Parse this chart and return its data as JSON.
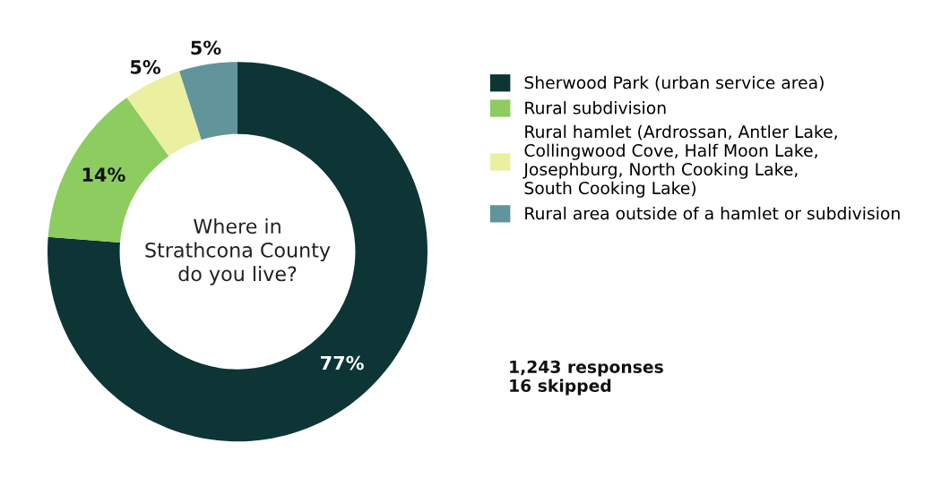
{
  "chart_data": {
    "type": "donut",
    "title": "Where in\nStrathcona County\ndo you live?",
    "categories": [
      "Sherwood Park (urban service area)",
      "Rural subdivision",
      "Rural hamlet (Ardrossan, Antler Lake,\nCollingwood Cove, Half Moon Lake,\nJosephburg, North Cooking Lake,\nSouth Cooking Lake)",
      "Rural area outside of a hamlet or subdivision"
    ],
    "values": [
      77,
      14,
      5,
      5
    ],
    "colors": [
      "#0d3536",
      "#8dcc5f",
      "#eaf0a0",
      "#62949c"
    ],
    "value_labels": [
      "77%",
      "14%",
      "5%",
      "5%"
    ],
    "legend": "right",
    "annotations": [
      "1,243 responses\n16 skipped"
    ]
  }
}
